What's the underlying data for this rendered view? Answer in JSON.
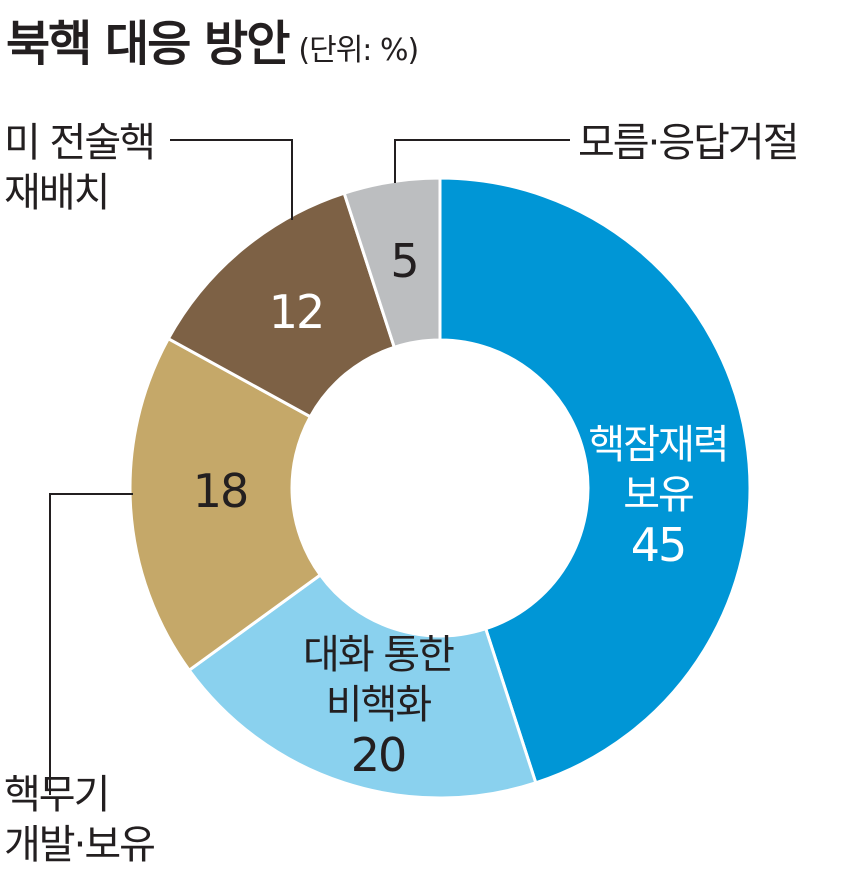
{
  "header": {
    "title": "북핵 대응 방안",
    "unit": "(단위: %)"
  },
  "chart_data": {
    "type": "pie",
    "title": "북핵 대응 방안",
    "unit": "%",
    "donut": true,
    "categories": [
      "핵잠재력 보유",
      "대화 통한 비핵화",
      "핵무기 개발·보유",
      "미 전술핵 재배치",
      "모름·응답거절"
    ],
    "values": [
      45,
      20,
      18,
      12,
      5
    ],
    "colors": [
      "#0096d6",
      "#8ad1ee",
      "#c5a869",
      "#7d6145",
      "#bcbec0"
    ]
  },
  "labels": {
    "nuclear_potential": {
      "line1": "핵잠재력",
      "line2": "보유",
      "value": "45"
    },
    "dialogue": {
      "line1": "대화 통한",
      "line2": "비핵화",
      "value": "20"
    },
    "weapons_dev": {
      "line1": "핵무기",
      "line2": "개발·보유",
      "value": "18"
    },
    "tactical_nukes": {
      "line1": "미 전술핵",
      "line2": "재배치",
      "value": "12"
    },
    "unknown": {
      "line1": "모름·응답거절",
      "value": "5"
    }
  }
}
